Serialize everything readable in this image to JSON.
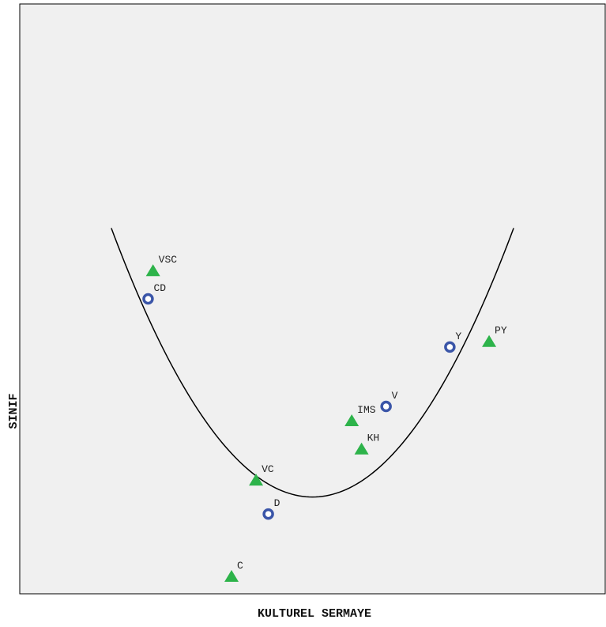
{
  "chart_data": {
    "type": "scatter",
    "title": "",
    "xlabel": "KULTUREL SERMAYE",
    "ylabel": "SINIF",
    "xlim": [
      -1.0,
      1.0
    ],
    "ylim": [
      -1.0,
      1.0
    ],
    "grid": false,
    "legend": "none",
    "colors": {
      "plot_background": "#f0f0f0",
      "circle": "#3a55a8",
      "triangle": "#2db34a",
      "curve": "#000000"
    },
    "series": [
      {
        "marker": "circle",
        "points": [
          {
            "label": "CD",
            "x": -0.67,
            "y": 0.0
          },
          {
            "label": "D",
            "x": -0.18,
            "y": -0.76
          },
          {
            "label": "V",
            "x": 0.3,
            "y": -0.38
          },
          {
            "label": "Y",
            "x": 0.56,
            "y": -0.17
          }
        ]
      },
      {
        "marker": "triangle",
        "points": [
          {
            "label": "VSC",
            "x": -0.65,
            "y": 0.1
          },
          {
            "label": "VC",
            "x": -0.23,
            "y": -0.64
          },
          {
            "label": "C",
            "x": -0.33,
            "y": -0.98
          },
          {
            "label": "IMS",
            "x": 0.16,
            "y": -0.43
          },
          {
            "label": "KH",
            "x": 0.2,
            "y": -0.53
          },
          {
            "label": "PY",
            "x": 0.72,
            "y": -0.15
          }
        ]
      }
    ],
    "curve": {
      "type": "parabola",
      "x_range": [
        -0.82,
        0.82
      ],
      "vertex": {
        "x": 0.0,
        "y": -0.7
      },
      "endpoints_y": 0.25
    }
  }
}
